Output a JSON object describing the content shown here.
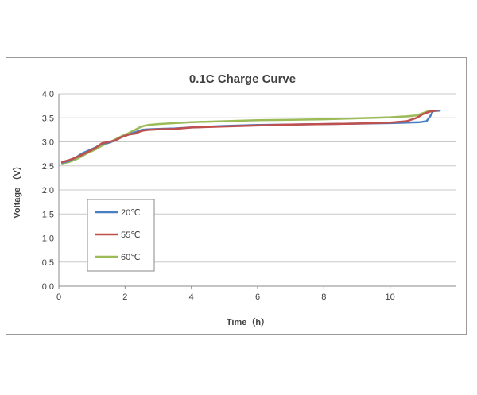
{
  "chart_data": {
    "type": "line",
    "title": "0.1C Charge Curve",
    "xlabel": "Time（h）",
    "ylabel": "Voltage （V）",
    "xlim": [
      0,
      12
    ],
    "ylim": [
      0.0,
      4.0
    ],
    "xticks": [
      0,
      2,
      4,
      6,
      8,
      10
    ],
    "yticks": [
      "0.0",
      "0.5",
      "1.0",
      "1.5",
      "2.0",
      "2.5",
      "3.0",
      "3.5",
      "4.0"
    ],
    "grid": "horizontal",
    "legend_position": "left",
    "series": [
      {
        "name": "20℃",
        "color": "#4a7fc1",
        "x": [
          0.1,
          0.3,
          0.5,
          0.7,
          0.9,
          1.1,
          1.3,
          1.5,
          1.7,
          1.9,
          2.1,
          2.3,
          2.5,
          2.7,
          3.0,
          3.5,
          4.0,
          5.0,
          6.0,
          7.0,
          8.0,
          9.0,
          10.0,
          10.5,
          10.9,
          11.1,
          11.2,
          11.3,
          11.5
        ],
        "y": [
          2.57,
          2.6,
          2.67,
          2.76,
          2.82,
          2.88,
          2.96,
          2.98,
          3.03,
          3.1,
          3.15,
          3.2,
          3.25,
          3.26,
          3.27,
          3.28,
          3.3,
          3.33,
          3.35,
          3.36,
          3.37,
          3.38,
          3.39,
          3.4,
          3.41,
          3.43,
          3.52,
          3.64,
          3.65
        ]
      },
      {
        "name": "55℃",
        "color": "#c0504d",
        "x": [
          0.1,
          0.3,
          0.5,
          0.7,
          0.9,
          1.1,
          1.3,
          1.5,
          1.7,
          1.9,
          2.1,
          2.3,
          2.5,
          2.7,
          3.0,
          3.5,
          4.0,
          5.0,
          6.0,
          7.0,
          8.0,
          9.0,
          10.0,
          10.5,
          10.8,
          11.0,
          11.2,
          11.4
        ],
        "y": [
          2.58,
          2.62,
          2.67,
          2.73,
          2.8,
          2.87,
          2.97,
          3.0,
          3.03,
          3.1,
          3.15,
          3.17,
          3.23,
          3.25,
          3.26,
          3.27,
          3.3,
          3.32,
          3.34,
          3.36,
          3.37,
          3.38,
          3.4,
          3.43,
          3.5,
          3.58,
          3.63,
          3.65
        ]
      },
      {
        "name": "60℃",
        "color": "#9bbb59",
        "x": [
          0.1,
          0.3,
          0.5,
          0.7,
          0.9,
          1.1,
          1.3,
          1.5,
          1.7,
          1.9,
          2.1,
          2.3,
          2.5,
          2.7,
          3.0,
          3.5,
          4.0,
          5.0,
          6.0,
          7.0,
          8.0,
          9.0,
          10.0,
          10.5,
          10.8,
          11.0,
          11.2
        ],
        "y": [
          2.55,
          2.58,
          2.63,
          2.7,
          2.78,
          2.84,
          2.92,
          2.98,
          3.05,
          3.12,
          3.18,
          3.25,
          3.32,
          3.35,
          3.37,
          3.39,
          3.41,
          3.43,
          3.45,
          3.46,
          3.47,
          3.49,
          3.51,
          3.53,
          3.55,
          3.6,
          3.65
        ]
      }
    ]
  }
}
